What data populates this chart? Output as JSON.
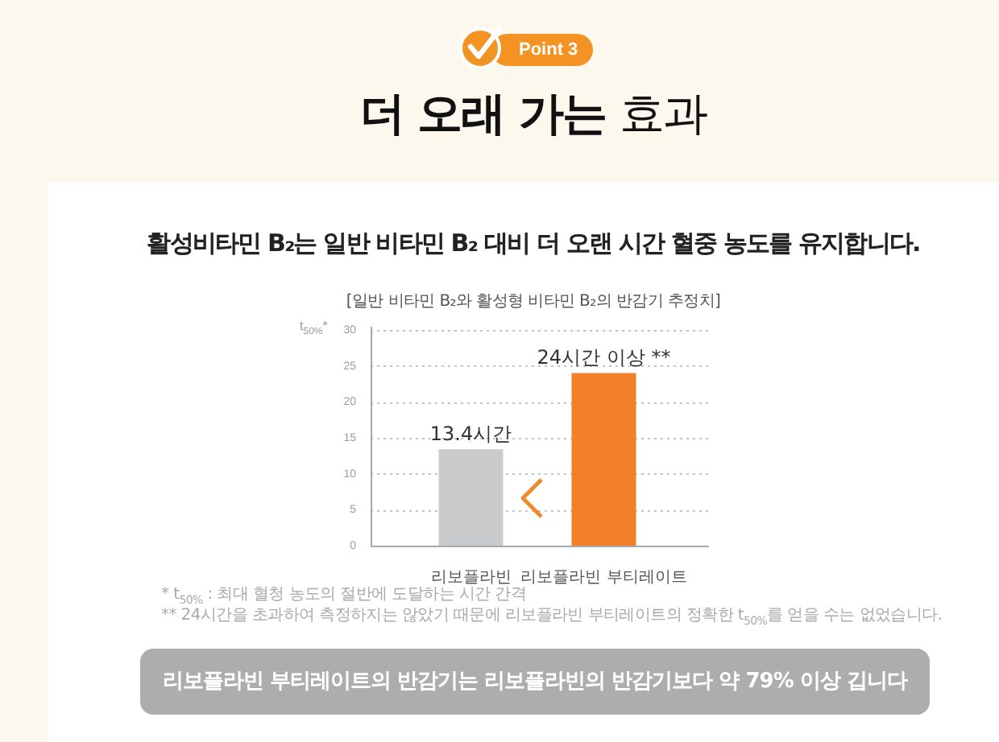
{
  "chart_data": {
    "type": "bar",
    "title": "더 오래 가는 효과",
    "subtitle": "활성비타민 B₂는 일반 비타민 B₂ 대비 더 오랜 시간 혈중 농도를 유지합니다.",
    "ylabel": "t$_{50%}$*",
    "categories": [
      "리보플라빈",
      "리보플라빈 부티레이트"
    ],
    "values": [
      13.4,
      24
    ],
    "colors": [
      "#c9cacc",
      "#f2802a"
    ],
    "value_labels": [
      "13.4시간",
      "24시간 이상 **"
    ],
    "ylim": [
      0,
      30
    ],
    "yticks": [
      0,
      5,
      10,
      15,
      20,
      25,
      30
    ],
    "grid": "y",
    "annotations": [
      "Point 3",
      "[일반 비타민 B₂와 활성형 비타민 B₂의 반감기 추정치]",
      "* t$_{50%}$ : 최대 혈청 농도의 절반에 도달하는 시간 간격",
      "** 24시간을 초과하여 측정하지는 않았기 때문에 리보플라빈 부티레이트의 정확한 t$_{50%}$를 얻을 수는 없었습니다.",
      "리보플라빈 부티레이트의 반감기는 리보플라빈의 반감기보다 약 79% 이상 깁니다"
    ]
  }
}
